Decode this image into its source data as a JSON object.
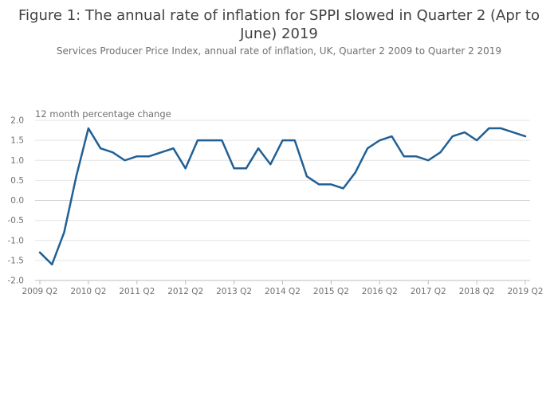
{
  "header": {
    "title": "Figure 1: The annual rate of inflation for SPPI slowed in Quarter 2 (Apr to June) 2019",
    "subtitle": "Services Producer Price Index, annual rate of inflation, UK, Quarter 2 2009 to Quarter 2 2019"
  },
  "chart_data": {
    "type": "line",
    "title": "Figure 1: The annual rate of inflation for SPPI slowed in Quarter 2 (Apr to June) 2019",
    "subtitle": "Services Producer Price Index, annual rate of inflation, UK, Quarter 2 2009 to Quarter 2 2019",
    "ylabel": "12 month percentage change",
    "xlabel": "",
    "ylim": [
      -2.0,
      2.0
    ],
    "yticks": [
      "2.0",
      "1.5",
      "1.0",
      "0.5",
      "0.0",
      "-0.5",
      "-1.0",
      "-1.5",
      "-2.0"
    ],
    "xticks": [
      "2009 Q2",
      "2010 Q2",
      "2011 Q2",
      "2012 Q2",
      "2013 Q2",
      "2014 Q2",
      "2015 Q2",
      "2016 Q2",
      "2017 Q2",
      "2018 Q2",
      "2019 Q2"
    ],
    "grid": true,
    "line_color": "#206095",
    "x": [
      "2009 Q2",
      "2009 Q3",
      "2009 Q4",
      "2010 Q1",
      "2010 Q2",
      "2010 Q3",
      "2010 Q4",
      "2011 Q1",
      "2011 Q2",
      "2011 Q3",
      "2011 Q4",
      "2012 Q1",
      "2012 Q2",
      "2012 Q3",
      "2012 Q4",
      "2013 Q1",
      "2013 Q2",
      "2013 Q3",
      "2013 Q4",
      "2014 Q1",
      "2014 Q2",
      "2014 Q3",
      "2014 Q4",
      "2015 Q1",
      "2015 Q2",
      "2015 Q3",
      "2015 Q4",
      "2016 Q1",
      "2016 Q2",
      "2016 Q3",
      "2016 Q4",
      "2017 Q1",
      "2017 Q2",
      "2017 Q3",
      "2017 Q4",
      "2018 Q1",
      "2018 Q2",
      "2018 Q3",
      "2018 Q4",
      "2019 Q1",
      "2019 Q2"
    ],
    "values": [
      -1.3,
      -1.6,
      -0.8,
      0.6,
      1.8,
      1.3,
      1.2,
      1.0,
      1.1,
      1.1,
      1.2,
      1.3,
      0.8,
      1.5,
      1.5,
      1.5,
      0.8,
      0.8,
      1.3,
      0.9,
      1.5,
      1.5,
      0.6,
      0.4,
      0.4,
      0.3,
      0.7,
      1.3,
      1.5,
      1.6,
      1.1,
      1.1,
      1.0,
      1.2,
      1.6,
      1.7,
      1.5,
      1.8,
      1.8,
      1.7,
      1.6
    ]
  }
}
